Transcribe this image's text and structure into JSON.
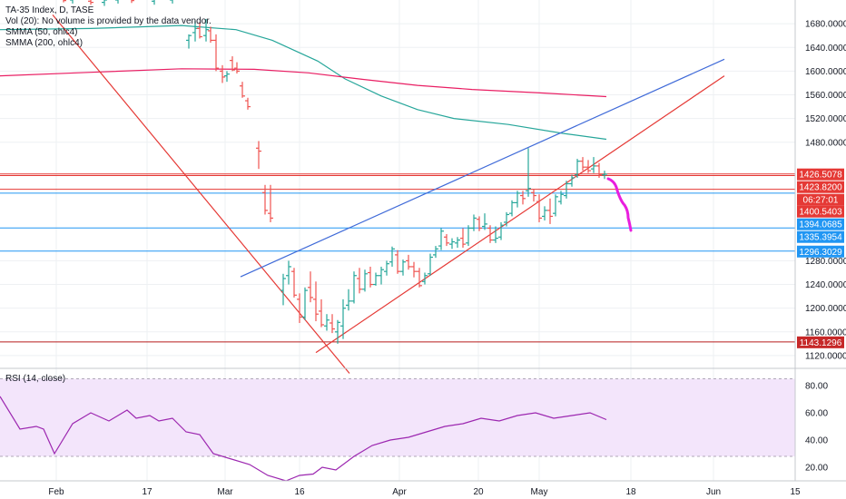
{
  "legend": {
    "symbol": "TA-35 Index, D, TASE",
    "volume_note": "Vol (20): No volume is provided by the data vendor.",
    "smma50": "SMMA (50, ohlc4)",
    "smma200": "SMMA (200, ohlc4)",
    "rsi": "RSI (14, close)"
  },
  "colors": {
    "up": "#26a69a",
    "down": "#ef5350",
    "smma50": "#26a69a",
    "smma200": "#e91e63",
    "trend_red": "#e53935",
    "trend_blue": "#3f6ad8",
    "drawing": "#e91ede",
    "rsi": "#9c27b0",
    "rsi_band": "#f3e5fb"
  },
  "chart_data": [
    {
      "type": "candlestick",
      "title": "TA-35 Index, D, TASE",
      "x_ticks": [
        "Feb",
        "17",
        "Mar",
        "16",
        "Apr",
        "20",
        "May",
        "18",
        "Jun",
        "15"
      ],
      "y_ticks": [
        "1120.0000",
        "1160.0000",
        "1200.0000",
        "1240.0000",
        "1280.0000",
        "1480.0000",
        "1520.0000",
        "1560.0000",
        "1600.0000",
        "1640.0000",
        "1680.0000"
      ],
      "ylim": [
        1100,
        1720
      ],
      "bars": [
        {
          "x": 70,
          "o": 1722,
          "h": 1728,
          "l": 1716,
          "c": 1719
        },
        {
          "x": 80,
          "o": 1720,
          "h": 1726,
          "l": 1714,
          "c": 1722
        },
        {
          "x": 100,
          "o": 1718,
          "h": 1725,
          "l": 1712,
          "c": 1716
        },
        {
          "x": 115,
          "o": 1716,
          "h": 1722,
          "l": 1710,
          "c": 1720
        },
        {
          "x": 130,
          "o": 1720,
          "h": 1726,
          "l": 1714,
          "c": 1723
        },
        {
          "x": 145,
          "o": 1721,
          "h": 1727,
          "l": 1715,
          "c": 1719
        },
        {
          "x": 170,
          "o": 1718,
          "h": 1724,
          "l": 1712,
          "c": 1721
        },
        {
          "x": 190,
          "o": 1720,
          "h": 1726,
          "l": 1714,
          "c": 1722
        },
        {
          "x": 208,
          "o": 1652,
          "h": 1662,
          "l": 1638,
          "c": 1660
        },
        {
          "x": 215,
          "o": 1665,
          "h": 1685,
          "l": 1650,
          "c": 1672
        },
        {
          "x": 220,
          "o": 1672,
          "h": 1682,
          "l": 1655,
          "c": 1658
        },
        {
          "x": 227,
          "o": 1660,
          "h": 1688,
          "l": 1650,
          "c": 1670
        },
        {
          "x": 232,
          "o": 1668,
          "h": 1675,
          "l": 1648,
          "c": 1652
        },
        {
          "x": 238,
          "o": 1652,
          "h": 1662,
          "l": 1600,
          "c": 1605
        },
        {
          "x": 245,
          "o": 1600,
          "h": 1610,
          "l": 1580,
          "c": 1590
        },
        {
          "x": 250,
          "o": 1592,
          "h": 1600,
          "l": 1582,
          "c": 1595
        },
        {
          "x": 256,
          "o": 1618,
          "h": 1625,
          "l": 1600,
          "c": 1602
        },
        {
          "x": 261,
          "o": 1605,
          "h": 1615,
          "l": 1596,
          "c": 1600
        },
        {
          "x": 267,
          "o": 1575,
          "h": 1582,
          "l": 1555,
          "c": 1558
        },
        {
          "x": 273,
          "o": 1550,
          "h": 1555,
          "l": 1535,
          "c": 1540
        },
        {
          "x": 285,
          "o": 1470,
          "h": 1482,
          "l": 1435,
          "c": 1465
        },
        {
          "x": 292,
          "o": 1395,
          "h": 1408,
          "l": 1358,
          "c": 1365
        },
        {
          "x": 298,
          "o": 1360,
          "h": 1408,
          "l": 1345,
          "c": 1352
        },
        {
          "x": 312,
          "o": 1230,
          "h": 1258,
          "l": 1205,
          "c": 1250
        },
        {
          "x": 318,
          "o": 1255,
          "h": 1280,
          "l": 1240,
          "c": 1270
        },
        {
          "x": 324,
          "o": 1262,
          "h": 1268,
          "l": 1218,
          "c": 1222
        },
        {
          "x": 330,
          "o": 1215,
          "h": 1225,
          "l": 1175,
          "c": 1185
        },
        {
          "x": 336,
          "o": 1185,
          "h": 1235,
          "l": 1180,
          "c": 1230
        },
        {
          "x": 342,
          "o": 1235,
          "h": 1262,
          "l": 1210,
          "c": 1218
        },
        {
          "x": 348,
          "o": 1215,
          "h": 1245,
          "l": 1178,
          "c": 1190
        },
        {
          "x": 354,
          "o": 1195,
          "h": 1215,
          "l": 1168,
          "c": 1172
        },
        {
          "x": 360,
          "o": 1170,
          "h": 1190,
          "l": 1162,
          "c": 1180
        },
        {
          "x": 366,
          "o": 1175,
          "h": 1190,
          "l": 1158,
          "c": 1165
        },
        {
          "x": 372,
          "o": 1160,
          "h": 1180,
          "l": 1140,
          "c": 1176
        },
        {
          "x": 378,
          "o": 1170,
          "h": 1215,
          "l": 1148,
          "c": 1200
        },
        {
          "x": 384,
          "o": 1205,
          "h": 1232,
          "l": 1196,
          "c": 1212
        },
        {
          "x": 390,
          "o": 1212,
          "h": 1262,
          "l": 1208,
          "c": 1255
        },
        {
          "x": 396,
          "o": 1250,
          "h": 1268,
          "l": 1225,
          "c": 1232
        },
        {
          "x": 402,
          "o": 1232,
          "h": 1265,
          "l": 1228,
          "c": 1258
        },
        {
          "x": 408,
          "o": 1260,
          "h": 1270,
          "l": 1235,
          "c": 1240
        },
        {
          "x": 414,
          "o": 1240,
          "h": 1260,
          "l": 1238,
          "c": 1255
        },
        {
          "x": 420,
          "o": 1255,
          "h": 1270,
          "l": 1240,
          "c": 1265
        },
        {
          "x": 426,
          "o": 1262,
          "h": 1280,
          "l": 1255,
          "c": 1275
        },
        {
          "x": 432,
          "o": 1278,
          "h": 1304,
          "l": 1270,
          "c": 1300
        },
        {
          "x": 438,
          "o": 1290,
          "h": 1298,
          "l": 1258,
          "c": 1262
        },
        {
          "x": 444,
          "o": 1262,
          "h": 1282,
          "l": 1255,
          "c": 1278
        },
        {
          "x": 450,
          "o": 1280,
          "h": 1290,
          "l": 1265,
          "c": 1270
        },
        {
          "x": 456,
          "o": 1270,
          "h": 1278,
          "l": 1252,
          "c": 1262
        },
        {
          "x": 462,
          "o": 1262,
          "h": 1268,
          "l": 1235,
          "c": 1238
        },
        {
          "x": 468,
          "o": 1245,
          "h": 1260,
          "l": 1240,
          "c": 1255
        },
        {
          "x": 474,
          "o": 1258,
          "h": 1292,
          "l": 1255,
          "c": 1286
        },
        {
          "x": 480,
          "o": 1290,
          "h": 1305,
          "l": 1285,
          "c": 1300
        },
        {
          "x": 486,
          "o": 1305,
          "h": 1335,
          "l": 1298,
          "c": 1330
        },
        {
          "x": 492,
          "o": 1320,
          "h": 1325,
          "l": 1305,
          "c": 1310
        },
        {
          "x": 498,
          "o": 1308,
          "h": 1318,
          "l": 1300,
          "c": 1312
        },
        {
          "x": 504,
          "o": 1310,
          "h": 1320,
          "l": 1302,
          "c": 1315
        },
        {
          "x": 510,
          "o": 1318,
          "h": 1335,
          "l": 1302,
          "c": 1308
        },
        {
          "x": 516,
          "o": 1310,
          "h": 1340,
          "l": 1305,
          "c": 1335
        },
        {
          "x": 522,
          "o": 1335,
          "h": 1358,
          "l": 1330,
          "c": 1352
        },
        {
          "x": 528,
          "o": 1350,
          "h": 1355,
          "l": 1330,
          "c": 1335
        },
        {
          "x": 534,
          "o": 1338,
          "h": 1360,
          "l": 1332,
          "c": 1342
        },
        {
          "x": 540,
          "o": 1335,
          "h": 1340,
          "l": 1310,
          "c": 1315
        },
        {
          "x": 546,
          "o": 1315,
          "h": 1338,
          "l": 1310,
          "c": 1318
        },
        {
          "x": 552,
          "o": 1320,
          "h": 1345,
          "l": 1315,
          "c": 1340
        },
        {
          "x": 558,
          "o": 1345,
          "h": 1362,
          "l": 1338,
          "c": 1358
        },
        {
          "x": 564,
          "o": 1360,
          "h": 1382,
          "l": 1355,
          "c": 1378
        },
        {
          "x": 570,
          "o": 1378,
          "h": 1398,
          "l": 1370,
          "c": 1394
        },
        {
          "x": 576,
          "o": 1390,
          "h": 1398,
          "l": 1375,
          "c": 1385
        },
        {
          "x": 582,
          "o": 1398,
          "h": 1470,
          "l": 1388,
          "c": 1402
        },
        {
          "x": 588,
          "o": 1395,
          "h": 1400,
          "l": 1380,
          "c": 1390
        },
        {
          "x": 594,
          "o": 1380,
          "h": 1392,
          "l": 1345,
          "c": 1352
        },
        {
          "x": 600,
          "o": 1355,
          "h": 1372,
          "l": 1348,
          "c": 1365
        },
        {
          "x": 606,
          "o": 1365,
          "h": 1385,
          "l": 1342,
          "c": 1355
        },
        {
          "x": 612,
          "o": 1360,
          "h": 1392,
          "l": 1355,
          "c": 1388
        },
        {
          "x": 618,
          "o": 1380,
          "h": 1398,
          "l": 1375,
          "c": 1392
        },
        {
          "x": 624,
          "o": 1390,
          "h": 1415,
          "l": 1385,
          "c": 1410
        },
        {
          "x": 630,
          "o": 1410,
          "h": 1425,
          "l": 1405,
          "c": 1420
        },
        {
          "x": 636,
          "o": 1425,
          "h": 1452,
          "l": 1420,
          "c": 1448
        },
        {
          "x": 642,
          "o": 1448,
          "h": 1455,
          "l": 1432,
          "c": 1438
        },
        {
          "x": 648,
          "o": 1438,
          "h": 1450,
          "l": 1428,
          "c": 1432
        },
        {
          "x": 654,
          "o": 1435,
          "h": 1455,
          "l": 1428,
          "c": 1440
        },
        {
          "x": 660,
          "o": 1440,
          "h": 1445,
          "l": 1420,
          "c": 1425
        },
        {
          "x": 666,
          "o": 1425,
          "h": 1432,
          "l": 1418,
          "c": 1426
        }
      ],
      "smma50": [
        [
          0,
          1670
        ],
        [
          100,
          1672
        ],
        [
          200,
          1677
        ],
        [
          260,
          1670
        ],
        [
          300,
          1652
        ],
        [
          350,
          1617
        ],
        [
          380,
          1587
        ],
        [
          420,
          1558
        ],
        [
          460,
          1535
        ],
        [
          500,
          1520
        ],
        [
          560,
          1510
        ],
        [
          620,
          1495
        ],
        [
          668,
          1485
        ]
      ],
      "smma200": [
        [
          0,
          1592
        ],
        [
          100,
          1598
        ],
        [
          200,
          1604
        ],
        [
          280,
          1603
        ],
        [
          340,
          1597
        ],
        [
          400,
          1586
        ],
        [
          460,
          1576
        ],
        [
          520,
          1569
        ],
        [
          600,
          1563
        ],
        [
          668,
          1557
        ]
      ],
      "trend_lines": [
        {
          "color": "red",
          "points": [
            [
              58,
              1695
            ],
            [
              385,
              1090
            ]
          ]
        },
        {
          "color": "red",
          "points": [
            [
              348,
              1125
            ],
            [
              798,
              1592
            ]
          ]
        },
        {
          "color": "blue",
          "points": [
            [
              265,
              1253
            ],
            [
              798,
              1620
            ]
          ]
        }
      ],
      "horizontal_levels": [
        {
          "value": 1426.5078,
          "color": "red",
          "label": "1426.5078"
        },
        {
          "value": 1423.82,
          "color": "red",
          "label": "1423.8200"
        },
        {
          "value": 1400.5403,
          "color": "red",
          "label": "1400.5403",
          "timer": "06:27:01"
        },
        {
          "value": 1394.0685,
          "color": "blue",
          "label": "1394.0685"
        },
        {
          "value": 1335.3954,
          "color": "blue",
          "label": "1335.3954"
        },
        {
          "value": 1296.3029,
          "color": "blue",
          "label": "1296.3029"
        },
        {
          "value": 1143.1296,
          "color": "darkred",
          "label": "1143.1296"
        }
      ]
    },
    {
      "type": "line",
      "title": "RSI (14, close)",
      "y_ticks": [
        "20.00",
        "40.00",
        "60.00",
        "80.00"
      ],
      "ylim": [
        10,
        92
      ],
      "band": [
        28,
        85
      ],
      "values": [
        [
          0,
          72
        ],
        [
          22,
          48
        ],
        [
          40,
          50
        ],
        [
          48,
          48
        ],
        [
          60,
          30
        ],
        [
          80,
          52
        ],
        [
          100,
          60
        ],
        [
          120,
          54
        ],
        [
          140,
          62
        ],
        [
          150,
          56
        ],
        [
          165,
          58
        ],
        [
          175,
          54
        ],
        [
          190,
          56
        ],
        [
          205,
          46
        ],
        [
          220,
          44
        ],
        [
          235,
          30
        ],
        [
          255,
          26
        ],
        [
          275,
          22
        ],
        [
          295,
          14
        ],
        [
          315,
          10
        ],
        [
          330,
          14
        ],
        [
          345,
          15
        ],
        [
          355,
          20
        ],
        [
          370,
          18
        ],
        [
          390,
          28
        ],
        [
          410,
          36
        ],
        [
          430,
          40
        ],
        [
          450,
          42
        ],
        [
          470,
          46
        ],
        [
          490,
          50
        ],
        [
          510,
          52
        ],
        [
          530,
          56
        ],
        [
          550,
          54
        ],
        [
          570,
          58
        ],
        [
          590,
          60
        ],
        [
          610,
          56
        ],
        [
          630,
          58
        ],
        [
          650,
          60
        ],
        [
          668,
          55
        ]
      ]
    }
  ]
}
